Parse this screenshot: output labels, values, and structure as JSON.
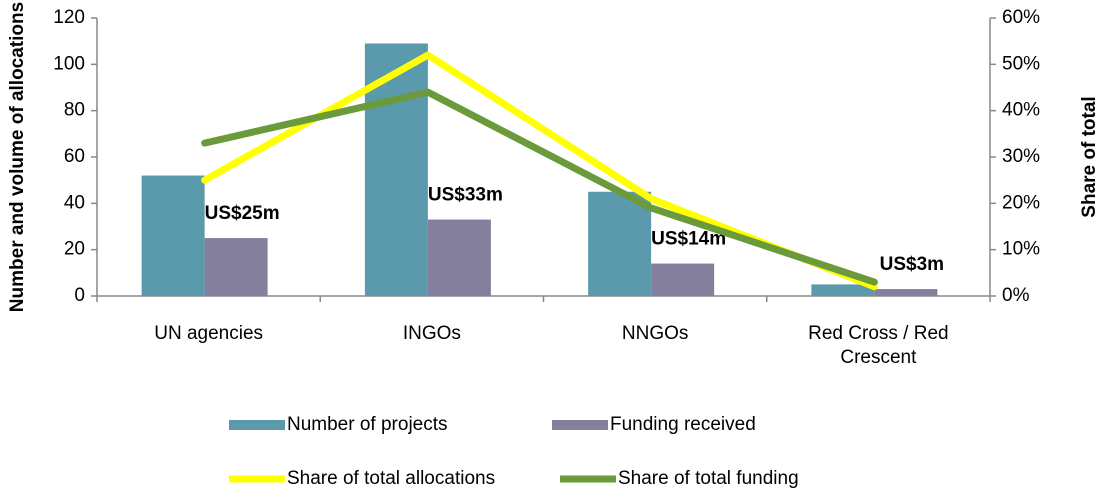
{
  "chart_data": {
    "type": "bar-line",
    "categories": [
      "UN agencies",
      "INGOs",
      "NNGOs",
      "Red Cross / Red Crescent"
    ],
    "y_label": "Number and volume of allocations",
    "y2_label": "Share of total",
    "ylim": [
      0,
      120
    ],
    "yticks": [
      0,
      20,
      40,
      60,
      80,
      100,
      120
    ],
    "y2lim": [
      0,
      60
    ],
    "y2ticks": [
      {
        "value": 0,
        "label": "0%"
      },
      {
        "value": 10,
        "label": "10%"
      },
      {
        "value": 20,
        "label": "20%"
      },
      {
        "value": 30,
        "label": "30%"
      },
      {
        "value": 40,
        "label": "40%"
      },
      {
        "value": 50,
        "label": "50%"
      },
      {
        "value": 60,
        "label": "60%"
      }
    ],
    "series": [
      {
        "name": "Number of projects",
        "type": "bar",
        "color": "#5a9aac",
        "values": [
          52,
          109,
          45,
          5
        ]
      },
      {
        "name": "Funding received",
        "type": "bar",
        "color": "#837f9c",
        "values": [
          25,
          33,
          14,
          3
        ],
        "value_labels": [
          "US$25m",
          "US$33m",
          "US$14m",
          "US$3m"
        ]
      },
      {
        "name": "Share of total allocations",
        "type": "line",
        "axis": "y2",
        "color": "#ffff00",
        "values": [
          25,
          52,
          21,
          2
        ]
      },
      {
        "name": "Share of total funding",
        "type": "line",
        "axis": "y2",
        "color": "#6a9a3a",
        "values": [
          33,
          44,
          19,
          3
        ]
      }
    ]
  }
}
